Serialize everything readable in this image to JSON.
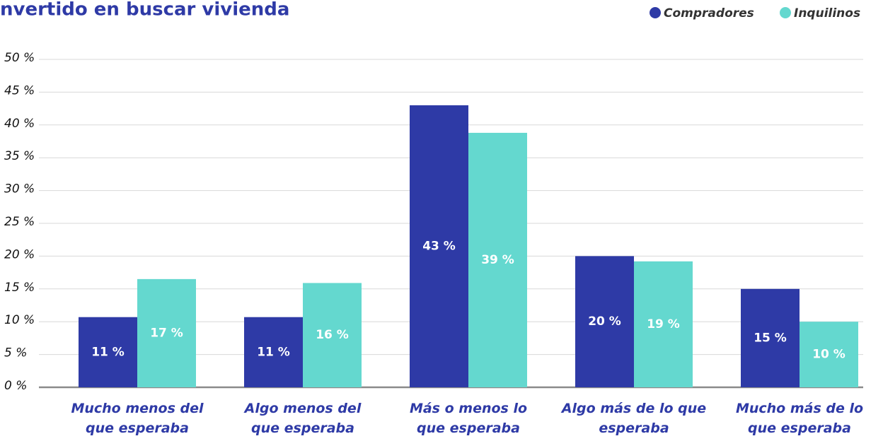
{
  "chart_data": {
    "type": "bar",
    "title": "nvertido en buscar vivienda",
    "categories": [
      "Mucho menos del que esperaba",
      "Algo menos del que esperaba",
      "Más o menos lo que esperaba",
      "Algo más de lo que esperaba",
      "Mucho más de lo que esperaba"
    ],
    "series": [
      {
        "name": "Compradores",
        "color": "#2e3aa6",
        "values": [
          10.7,
          10.7,
          43,
          20,
          15
        ],
        "value_labels": [
          "11 %",
          "11 %",
          "43 %",
          "20 %",
          "15 %"
        ]
      },
      {
        "name": "Inquilinos",
        "color": "#64d8cf",
        "values": [
          16.5,
          15.9,
          38.8,
          19.2,
          10
        ],
        "value_labels": [
          "17 %",
          "16 %",
          "39 %",
          "19 %",
          "10 %"
        ]
      }
    ],
    "ylim": [
      0,
      50
    ],
    "yticks": [
      {
        "value": 0,
        "label": "0 %"
      },
      {
        "value": 5,
        "label": "5 %"
      },
      {
        "value": 10,
        "label": "10 %"
      },
      {
        "value": 15,
        "label": "15 %"
      },
      {
        "value": 20,
        "label": "20 %"
      },
      {
        "value": 25,
        "label": "25 %"
      },
      {
        "value": 30,
        "label": "30 %"
      },
      {
        "value": 35,
        "label": "35 %"
      },
      {
        "value": 40,
        "label": "40 %"
      },
      {
        "value": 45,
        "label": "45 %"
      },
      {
        "value": 50,
        "label": "50 %"
      }
    ],
    "grid": true
  }
}
